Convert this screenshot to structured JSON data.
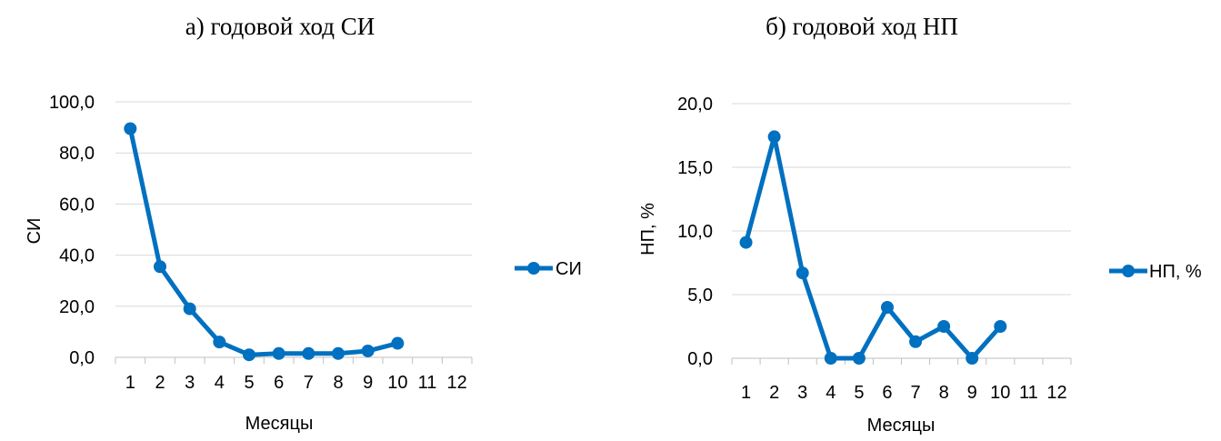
{
  "colors": {
    "series": "#0070C0",
    "grid": "#d9d9d9",
    "axis": "#bfbfbf",
    "text": "#000000"
  },
  "chart_data": [
    {
      "type": "line",
      "title": "а) годовой ход СИ",
      "xlabel": "Месяцы",
      "ylabel": "СИ",
      "x": [
        1,
        2,
        3,
        4,
        5,
        6,
        7,
        8,
        9,
        10,
        11,
        12
      ],
      "x_tick_labels": [
        "1",
        "2",
        "3",
        "4",
        "5",
        "6",
        "7",
        "8",
        "9",
        "10",
        "11",
        "12"
      ],
      "y_tick_labels": [
        "0,0",
        "20,0",
        "40,0",
        "60,0",
        "80,0",
        "100,0"
      ],
      "y_ticks": [
        0,
        20,
        40,
        60,
        80,
        100
      ],
      "ylim": [
        0,
        100
      ],
      "grid": true,
      "legend_position": "right",
      "series": [
        {
          "name": "СИ",
          "x": [
            1,
            2,
            3,
            4,
            5,
            6,
            7,
            8,
            9,
            10
          ],
          "values": [
            89.5,
            35.5,
            19.0,
            6.0,
            1.0,
            1.5,
            1.5,
            1.5,
            2.5,
            5.5
          ]
        }
      ]
    },
    {
      "type": "line",
      "title": "б) годовой ход НП",
      "xlabel": "Месяцы",
      "ylabel": "НП, %",
      "x": [
        1,
        2,
        3,
        4,
        5,
        6,
        7,
        8,
        9,
        10,
        11,
        12
      ],
      "x_tick_labels": [
        "1",
        "2",
        "3",
        "4",
        "5",
        "6",
        "7",
        "8",
        "9",
        "10",
        "11",
        "12"
      ],
      "y_tick_labels": [
        "0,0",
        "5,0",
        "10,0",
        "15,0",
        "20,0"
      ],
      "y_ticks": [
        0,
        5,
        10,
        15,
        20
      ],
      "ylim": [
        0,
        20
      ],
      "grid": true,
      "legend_position": "right",
      "series": [
        {
          "name": "НП, %",
          "x": [
            1,
            2,
            3,
            4,
            5,
            6,
            7,
            8,
            9,
            10
          ],
          "values": [
            9.1,
            17.4,
            6.7,
            0.0,
            0.0,
            4.0,
            1.3,
            2.5,
            0.0,
            2.5
          ]
        }
      ]
    }
  ]
}
